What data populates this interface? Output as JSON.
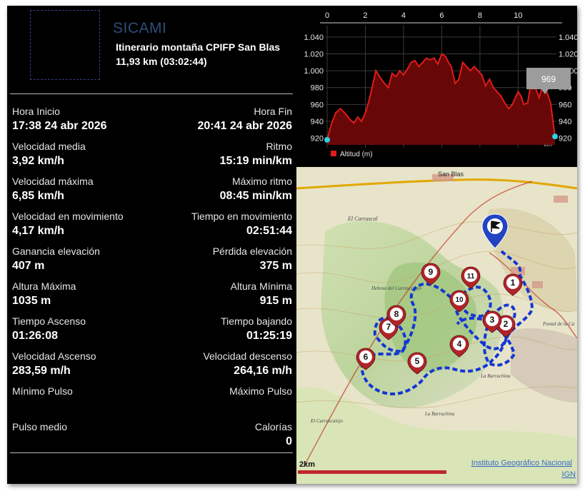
{
  "header": {
    "app_name": "SICAMI",
    "route_title": "Itinerario montaña CPIFP San Blas",
    "route_summary": "11,93 km (03:02:44)"
  },
  "stats": [
    {
      "left_label": "Hora Inicio",
      "left_value": "17:38 24 abr 2026",
      "right_label": "Hora Fin",
      "right_value": "20:41 24 abr 2026"
    },
    {
      "left_label": "Velocidad media",
      "left_value": "3,92 km/h",
      "right_label": "Ritmo",
      "right_value": "15:19 min/km"
    },
    {
      "left_label": "Velocidad máxima",
      "left_value": "6,85 km/h",
      "right_label": "Máximo ritmo",
      "right_value": "08:45 min/km"
    },
    {
      "left_label": "Velocidad en movimiento",
      "left_value": "4,17 km/h",
      "right_label": "Tiempo en movimiento",
      "right_value": "02:51:44"
    },
    {
      "left_label": "Ganancia elevación",
      "left_value": "407 m",
      "right_label": "Pérdida elevación",
      "right_value": "375 m"
    },
    {
      "left_label": "Altura Máxima",
      "left_value": "1035 m",
      "right_label": "Altura Mínima",
      "right_value": "915 m"
    },
    {
      "left_label": "Tiempo Ascenso",
      "left_value": "01:26:08",
      "right_label": "Tiempo bajando",
      "right_value": "01:25:19"
    },
    {
      "left_label": "Velocidad Ascenso",
      "left_value": "283,59 m/h",
      "right_label": "Velocidad descenso",
      "right_value": "264,16 m/h"
    },
    {
      "left_label": "Mínimo Pulso",
      "left_value": "",
      "right_label": "Máximo Pulso",
      "right_value": ""
    },
    {
      "left_label": "Pulso medio",
      "left_value": "",
      "right_label": "Calorías",
      "right_value": "0"
    }
  ],
  "top_right_glyph": "0",
  "chart_data": {
    "type": "area",
    "x_ticks": [
      "0",
      "2",
      "4",
      "6",
      "8",
      "10"
    ],
    "x_tick_values": [
      0,
      2,
      4,
      6,
      8,
      10
    ],
    "y_ticks": [
      "920",
      "940",
      "960",
      "980",
      "1.000",
      "1.020",
      "1.040"
    ],
    "y_tick_values": [
      920,
      940,
      960,
      980,
      1000,
      1020,
      1040
    ],
    "xlim": [
      0,
      11.93
    ],
    "ylim": [
      912,
      1045
    ],
    "x_unit_label": "- km-",
    "legend": "Altitud (m)",
    "tooltip": "969",
    "colors": {
      "line": "#e01b1b",
      "fill": "#6e0707",
      "marker": "#2ad3e8",
      "tooltip_bg": "#9c9c9c"
    },
    "series": [
      {
        "x": [
          0.0,
          0.2,
          0.45,
          0.7,
          1.0,
          1.2,
          1.4,
          1.6,
          1.8,
          2.0,
          2.2,
          2.4,
          2.55,
          2.75,
          3.0,
          3.2,
          3.4,
          3.6,
          3.8,
          4.0,
          4.2,
          4.4,
          4.6,
          4.8,
          5.0,
          5.2,
          5.4,
          5.6,
          5.8,
          6.0,
          6.2,
          6.35,
          6.5,
          6.7,
          6.9,
          7.1,
          7.3,
          7.5,
          7.7,
          7.9,
          8.1,
          8.3,
          8.5,
          8.7,
          8.9,
          9.1,
          9.3,
          9.5,
          9.7,
          9.85,
          10.0,
          10.15,
          10.3,
          10.5,
          10.7,
          10.9,
          11.1,
          11.3,
          11.5,
          11.7,
          11.93
        ],
        "y": [
          918,
          935,
          950,
          955,
          948,
          942,
          938,
          945,
          940,
          950,
          965,
          985,
          1000,
          993,
          985,
          980,
          997,
          993,
          1000,
          995,
          1002,
          1010,
          1012,
          1005,
          1010,
          1015,
          1013,
          1015,
          1008,
          1020,
          1017,
          1010,
          1005,
          985,
          990,
          1010,
          1005,
          1000,
          1005,
          1000,
          995,
          982,
          990,
          980,
          975,
          970,
          962,
          955,
          960,
          968,
          975,
          970,
          960,
          962,
          990,
          980,
          968,
          985,
          975,
          962,
          922
        ]
      }
    ]
  },
  "map": {
    "labels": [
      "San Blas",
      "El Carrascal",
      "Dehesa del Carrascalejo",
      "La Barrachina",
      "El Carrascalejo",
      "La Barrachina",
      "Puntal de la Ca"
    ],
    "waypoints": [
      "1",
      "2",
      "3",
      "4",
      "5",
      "6",
      "7",
      "8",
      "9",
      "10",
      "11"
    ],
    "scale_label": "2km",
    "attribution_line1": "Instituto Geográfico Nacional",
    "attribution_line2": "IGN",
    "colors": {
      "track": "#1437d4",
      "pin": "#b0242a",
      "flag_pin": "#2344c2",
      "scalebar": "#c1262c"
    }
  }
}
